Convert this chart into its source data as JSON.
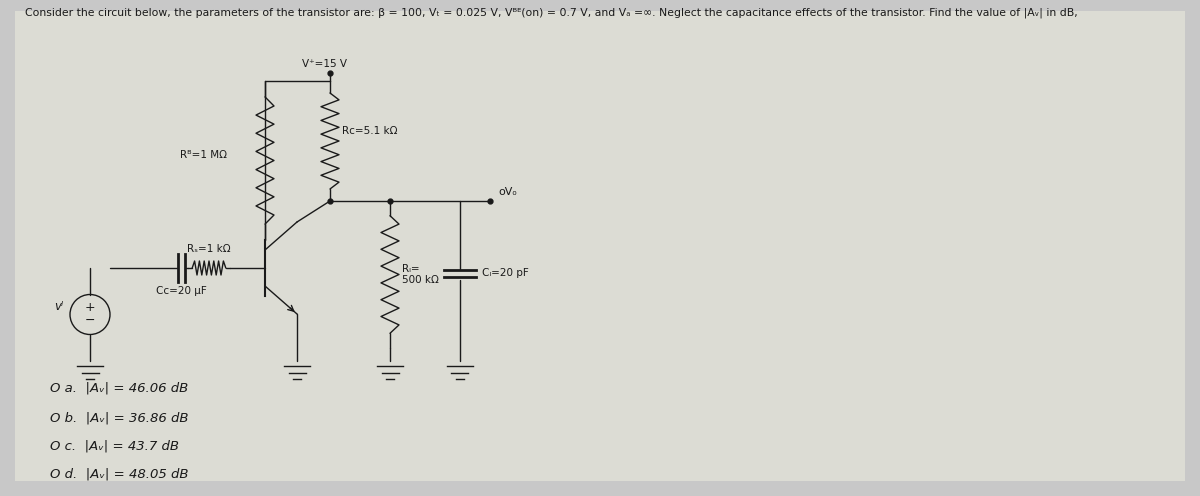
{
  "bg_color": "#c8c8c8",
  "panel_color": "#e8e8e0",
  "title_text": "Consider the circuit below, the parameters of the transistor are: β = 100, Vₜ = 0.025 V, Vᴮᴱ(on) = 0.7 V, and Vₐ =∞. Neglect the capacitance effects of the transistor. Find the value of |Aᵥ| in dB,",
  "vplus_label": "V⁺=15 V",
  "rb_label": "Rᴮ=1 MΩ",
  "rc_label": "Rᴄ=5.1 kΩ",
  "rs_label": "Rₛ=1 kΩ",
  "cc_label": "Cᴄ=20 μF",
  "rl_label": "Rₗ=\n500 kΩ",
  "cl_label": "Cₗ=20 pF",
  "vo_label": "oVₒ",
  "vi_label": "vᴵ",
  "options": [
    "O a.  |Aᵥ| = 46.06 dB",
    "O b.  |Aᵥ| = 36.86 dB",
    "O c.  |Aᵥ| = 43.7 dB",
    "O d.  |Aᵥ| = 48.05 dB"
  ],
  "figsize": [
    12.0,
    4.96
  ],
  "dpi": 100
}
